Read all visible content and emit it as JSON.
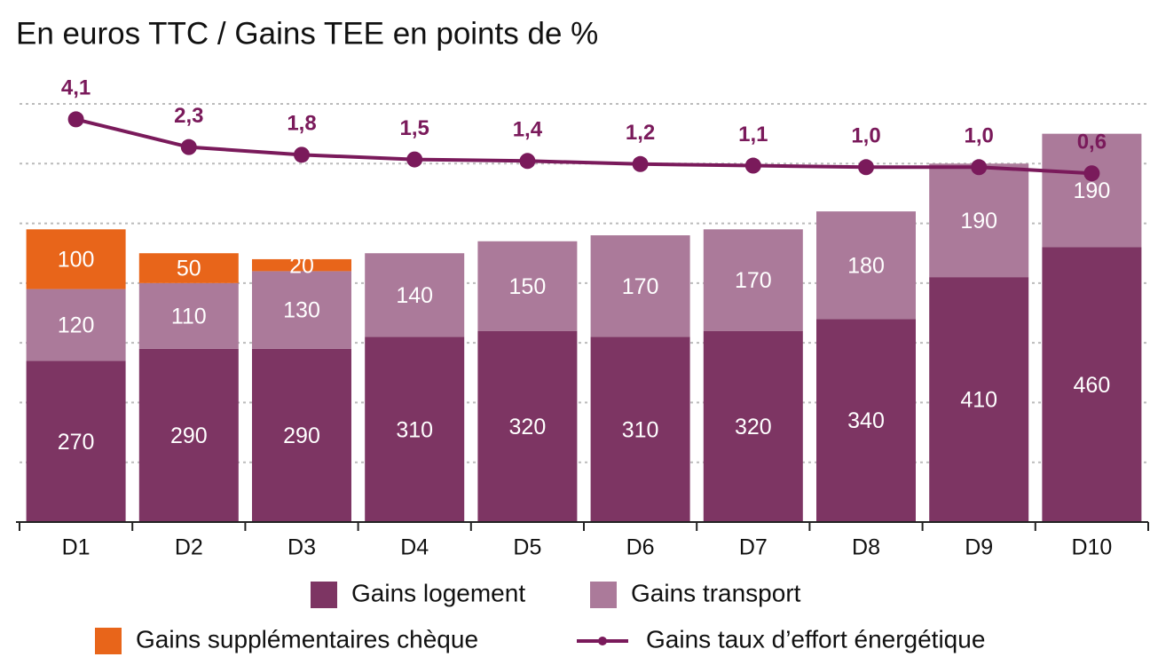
{
  "chart_data": {
    "type": "bar",
    "stacked": true,
    "title": "En euros TTC / Gains TEE en points de %",
    "categories": [
      "D1",
      "D2",
      "D3",
      "D4",
      "D5",
      "D6",
      "D7",
      "D8",
      "D9",
      "D10"
    ],
    "series": [
      {
        "name": "Gains logement",
        "color": "#7d3563",
        "values": [
          270,
          290,
          290,
          310,
          320,
          310,
          320,
          340,
          410,
          460
        ]
      },
      {
        "name": "Gains transport",
        "color": "#ab7a9a",
        "values": [
          120,
          110,
          130,
          140,
          150,
          170,
          170,
          180,
          190,
          190
        ]
      },
      {
        "name": "Gains supplémentaires chèque",
        "color": "#e8651a",
        "values": [
          100,
          50,
          20,
          null,
          null,
          null,
          null,
          null,
          null,
          null
        ]
      },
      {
        "name": "Gains taux d’effort énergétique",
        "color": "#7a1a5b",
        "type": "line",
        "axis": "y2",
        "values": [
          4.1,
          2.3,
          1.8,
          1.5,
          1.4,
          1.2,
          1.1,
          1.0,
          1.0,
          0.6
        ],
        "value_labels": [
          "4,1",
          "2,3",
          "1,8",
          "1,5",
          "1,4",
          "1,2",
          "1,1",
          "1,0",
          "1,0",
          "0,6"
        ]
      }
    ],
    "ylim": [
      0,
      700
    ],
    "yticks": [
      100,
      200,
      300,
      400,
      500,
      600,
      700
    ],
    "y2lim": [
      -22,
      5.1
    ],
    "grid": true
  }
}
